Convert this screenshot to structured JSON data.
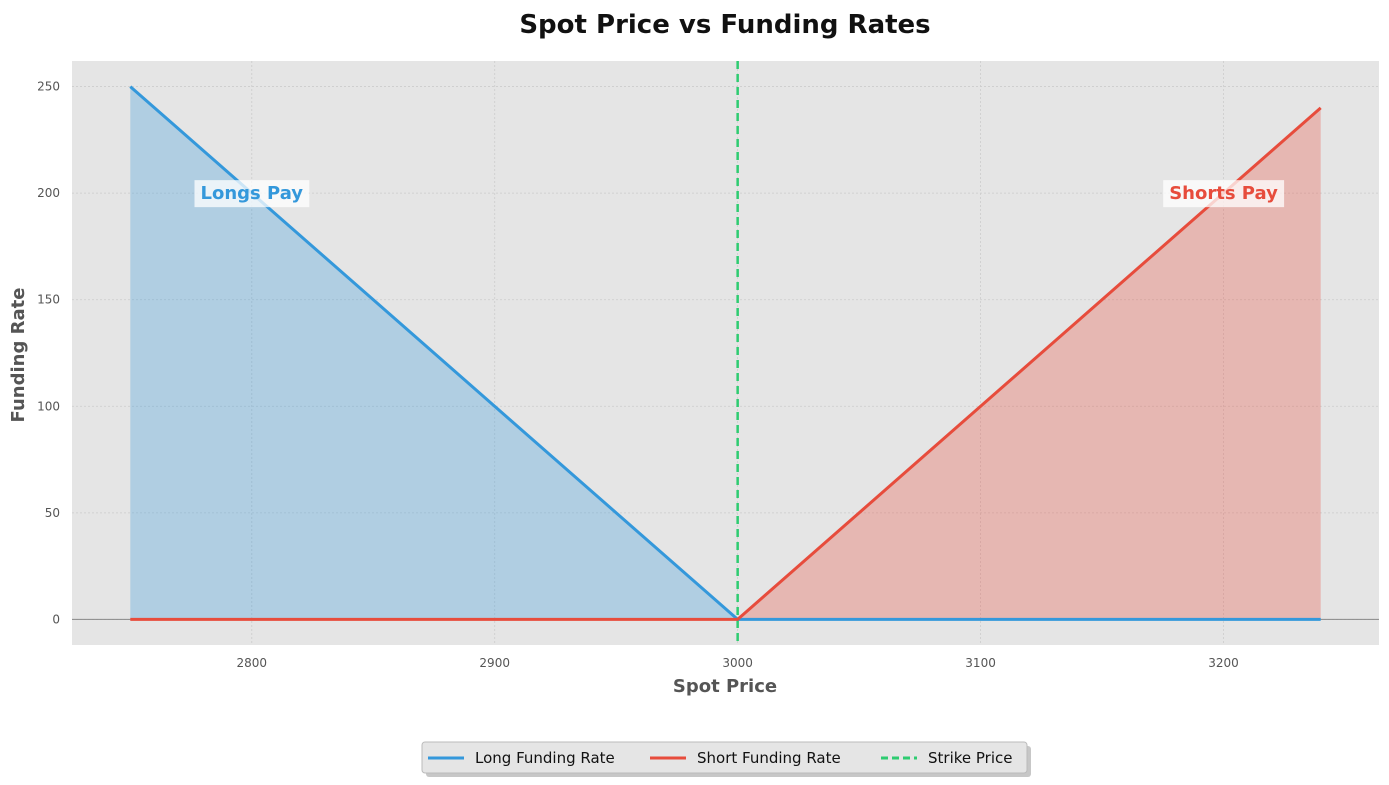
{
  "chart_data": {
    "type": "line",
    "title": "Spot Price vs Funding Rates",
    "xlabel": "Spot Price",
    "ylabel": "Funding Rate",
    "xlim": [
      2726,
      3264
    ],
    "ylim": [
      -12,
      262
    ],
    "x_ticks": [
      2800,
      2900,
      3000,
      3100,
      3200
    ],
    "y_ticks": [
      0,
      50,
      100,
      150,
      200,
      250
    ],
    "grid": true,
    "legend_position": "bottom-center",
    "series": [
      {
        "name": "Long Funding Rate",
        "color": "#3498db",
        "style": "solid",
        "fill": true,
        "x": [
          2750,
          3000,
          3240
        ],
        "y": [
          250,
          0,
          0
        ]
      },
      {
        "name": "Short Funding Rate",
        "color": "#e74c3c",
        "style": "solid",
        "fill": true,
        "x": [
          2750,
          3000,
          3240
        ],
        "y": [
          0,
          0,
          240
        ]
      }
    ],
    "reference_lines": [
      {
        "name": "Strike Price",
        "orientation": "vertical",
        "x": 3000,
        "color": "#2ecc71",
        "style": "dashed"
      }
    ],
    "annotations": [
      {
        "text": "Longs Pay",
        "x": 2800,
        "y": 200,
        "color": "#3498db"
      },
      {
        "text": "Shorts Pay",
        "x": 3200,
        "y": 200,
        "color": "#e74c3c"
      }
    ]
  }
}
